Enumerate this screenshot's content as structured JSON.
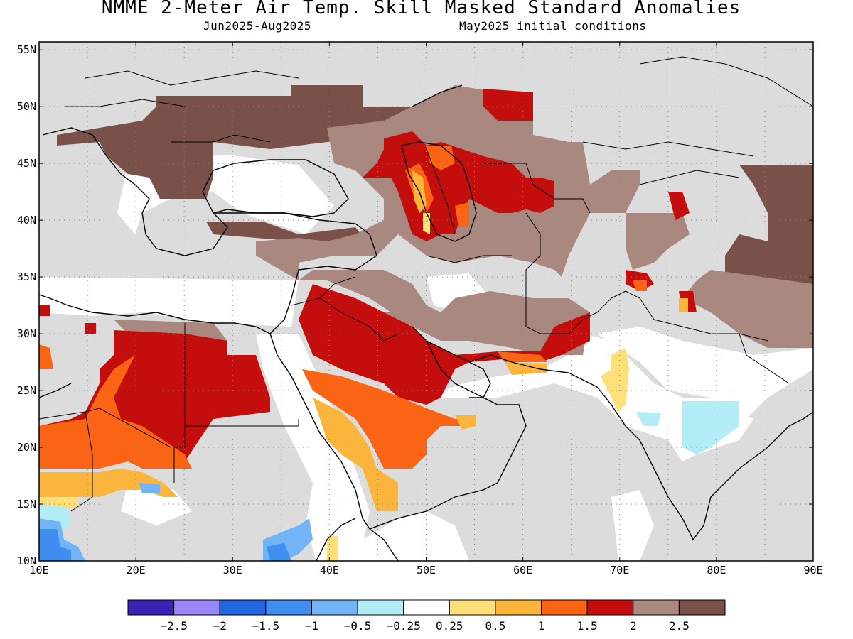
{
  "title": "NMME 2-Meter Air Temp. Skill Masked Standard Anomalies",
  "subtitle_left": "Jun2025-Aug2025",
  "subtitle_right": "May2025 initial conditions",
  "lat_labels": [
    "55N",
    "50N",
    "45N",
    "40N",
    "35N",
    "30N",
    "25N",
    "20N",
    "15N",
    "10N"
  ],
  "lon_labels": [
    "10E",
    "20E",
    "30E",
    "40E",
    "50E",
    "60E",
    "70E",
    "80E",
    "90E"
  ],
  "colorbar": {
    "colors": [
      "#3a22b4",
      "#9b85f7",
      "#2166e0",
      "#3f8ef0",
      "#72b4f5",
      "#b2ecf7",
      "#ffffff",
      "#fde07a",
      "#fcb53c",
      "#fa6414",
      "#c40d0d",
      "#a98880",
      "#7a5149"
    ],
    "labels": [
      "-2.5",
      "-2",
      "-1.5",
      "-1",
      "-0.5",
      "-0.25",
      "0.25",
      "0.5",
      "1",
      "1.5",
      "2",
      "2.5"
    ]
  },
  "legend_classes": {
    "no_skill": "#dcdcdc",
    "near_normal": "#ffffff"
  }
}
